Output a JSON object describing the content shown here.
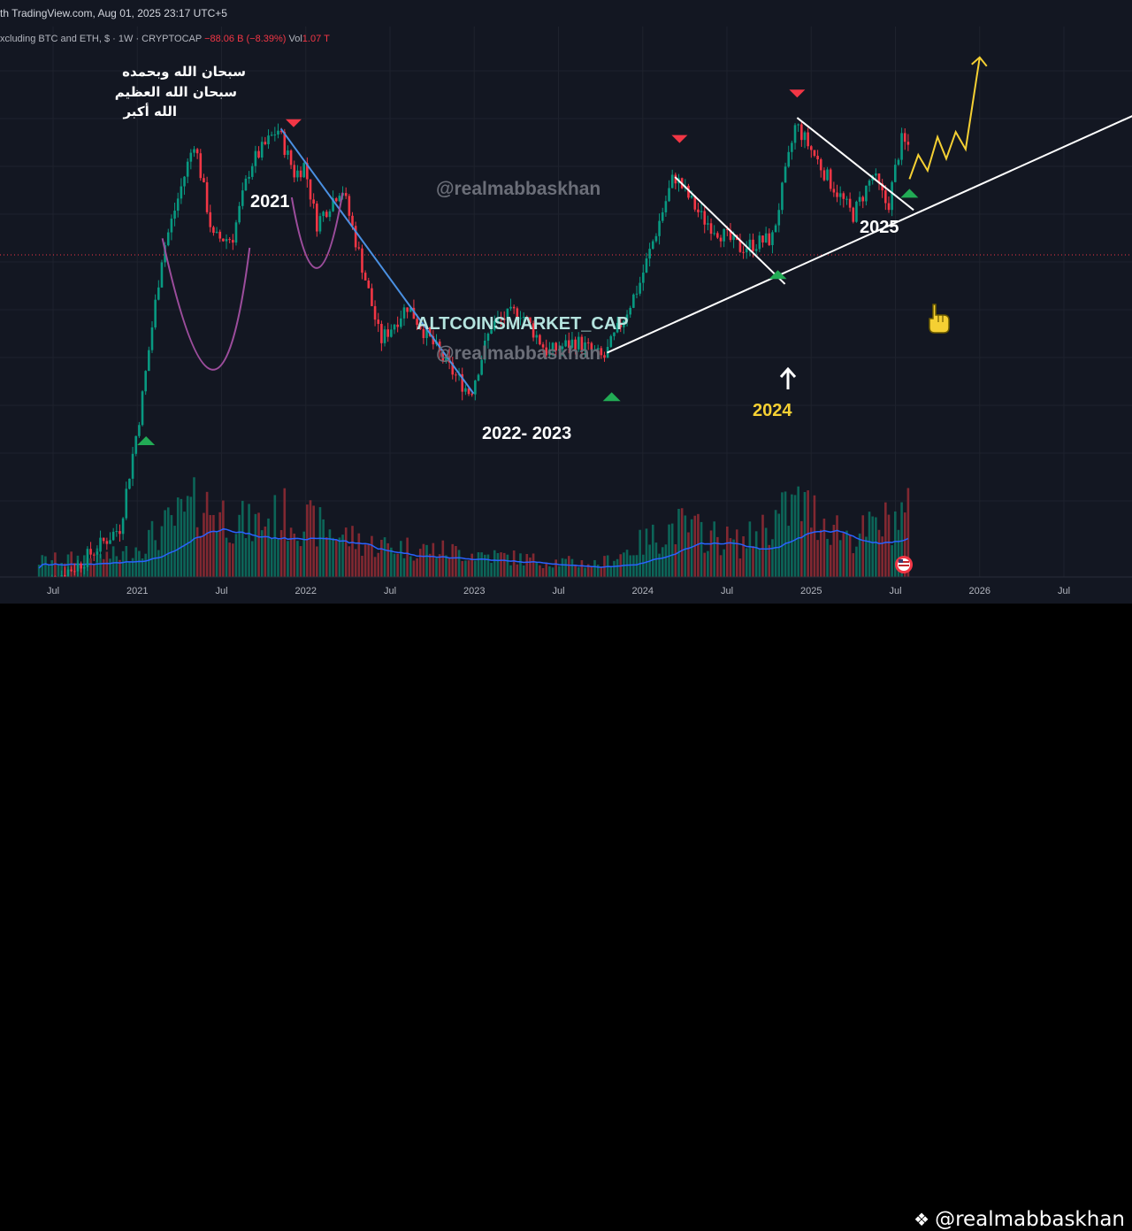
{
  "header": {
    "title_text": "th TradingView.com, Aug 01, 2025 23:17 UTC+5"
  },
  "legend": {
    "symbol_text": "xcluding BTC and ETH, $ · 1W · CRYPTOCAP",
    "change_text": "−88.06 B (−8.39%)",
    "vol_label": "Vol",
    "vol_value": "1.07 T"
  },
  "annotations": {
    "arabic_lines": [
      "سبحان الله وبحمده",
      "سبحان الله العظيم",
      "الله أكبر"
    ],
    "label_2021": "2021",
    "label_2022_2023": "2022- 2023",
    "label_2024": "2024",
    "label_2025": "2025",
    "altcoin_title": "ALTCOINSMARKET_CAP",
    "watermark_handle": "@realmabbaskhan"
  },
  "footer": {
    "watermark_text": "@realmabbaskhan"
  },
  "colors": {
    "background": "#131722",
    "up_candle": "#089981",
    "down_candle": "#f23645",
    "volume_ma": "#2962ff",
    "downtrend_line": "#4a90e2",
    "trend_line": "#ffffff",
    "cup_curve": "#9c4d9c",
    "projection": "#f5d033",
    "up_marker": "#22ab55",
    "down_marker": "#f23645"
  },
  "chart_data": {
    "type": "candlestick",
    "symbol": "CRYPTOCAP (excluding BTC and ETH)",
    "interval": "1W",
    "x_labels": [
      "Jul",
      "2021",
      "Jul",
      "2022",
      "Jul",
      "2023",
      "Jul",
      "2024",
      "Jul",
      "2025",
      "Jul",
      "2026",
      "Jul"
    ],
    "price_path": [
      [
        "2020-06-01",
        0.07
      ],
      [
        "2020-09-01",
        0.08
      ],
      [
        "2020-12-01",
        0.1
      ],
      [
        "2021-01-15",
        0.2
      ],
      [
        "2021-03-01",
        0.5
      ],
      [
        "2021-05-10",
        0.98
      ],
      [
        "2021-06-20",
        0.55
      ],
      [
        "2021-08-01",
        0.55
      ],
      [
        "2021-09-10",
        0.85
      ],
      [
        "2021-11-08",
        1.05
      ],
      [
        "2021-12-15",
        0.8
      ],
      [
        "2022-01-05",
        0.85
      ],
      [
        "2022-02-01",
        0.6
      ],
      [
        "2022-03-25",
        0.75
      ],
      [
        "2022-05-12",
        0.45
      ],
      [
        "2022-06-18",
        0.3
      ],
      [
        "2022-08-15",
        0.37
      ],
      [
        "2022-11-10",
        0.26
      ],
      [
        "2022-12-30",
        0.22
      ],
      [
        "2023-02-15",
        0.33
      ],
      [
        "2023-04-15",
        0.36
      ],
      [
        "2023-06-15",
        0.28
      ],
      [
        "2023-08-15",
        0.3
      ],
      [
        "2023-10-15",
        0.27
      ],
      [
        "2024-01-01",
        0.42
      ],
      [
        "2024-03-15",
        0.8
      ],
      [
        "2024-05-15",
        0.62
      ],
      [
        "2024-08-05",
        0.52
      ],
      [
        "2024-10-15",
        0.55
      ],
      [
        "2024-12-05",
        1.08
      ],
      [
        "2025-02-15",
        0.78
      ],
      [
        "2025-04-07",
        0.63
      ],
      [
        "2025-05-20",
        0.8
      ],
      [
        "2025-06-22",
        0.66
      ],
      [
        "2025-07-20",
        0.98
      ],
      [
        "2025-08-01",
        0.95
      ]
    ],
    "projection_path": [
      [
        "2025-08-01",
        0.78
      ],
      [
        "2025-08-20",
        0.9
      ],
      [
        "2025-09-10",
        0.82
      ],
      [
        "2025-10-01",
        1.0
      ],
      [
        "2025-10-20",
        0.88
      ],
      [
        "2025-11-10",
        1.03
      ],
      [
        "2025-12-01",
        0.93
      ],
      [
        "2026-01-01",
        1.6
      ]
    ],
    "volume_profile": [
      [
        "2020-06-01",
        0.22
      ],
      [
        "2020-12-01",
        0.3
      ],
      [
        "2021-02-15",
        0.6
      ],
      [
        "2021-05-15",
        1.0
      ],
      [
        "2021-09-01",
        0.7
      ],
      [
        "2021-11-15",
        0.85
      ],
      [
        "2022-05-15",
        0.45
      ],
      [
        "2022-11-15",
        0.35
      ],
      [
        "2023-06-01",
        0.22
      ],
      [
        "2023-10-01",
        0.18
      ],
      [
        "2024-03-15",
        0.7
      ],
      [
        "2024-08-01",
        0.45
      ],
      [
        "2024-12-01",
        1.0
      ],
      [
        "2025-04-01",
        0.55
      ],
      [
        "2025-07-20",
        0.85
      ]
    ],
    "trendlines": [
      {
        "kind": "downtrend",
        "from": [
          "2021-11-08",
          1.05
        ],
        "to": [
          "2022-12-30",
          0.22
        ]
      },
      {
        "kind": "support",
        "from": [
          "2023-10-15",
          0.28
        ],
        "to": [
          "2026-12-31",
          1.18
        ]
      },
      {
        "kind": "resistance",
        "from": [
          "2024-03-10",
          0.79
        ],
        "to": [
          "2024-11-05",
          0.42
        ]
      },
      {
        "kind": "resistance",
        "from": [
          "2024-12-01",
          1.12
        ],
        "to": [
          "2025-08-10",
          0.65
        ]
      }
    ],
    "markers": [
      {
        "shape": "up",
        "date": "2021-01-20"
      },
      {
        "shape": "down",
        "date": "2021-12-05"
      },
      {
        "shape": "up",
        "date": "2023-10-25"
      },
      {
        "shape": "down",
        "date": "2024-03-20"
      },
      {
        "shape": "up",
        "date": "2024-10-20"
      },
      {
        "shape": "down",
        "date": "2024-12-01"
      },
      {
        "shape": "up",
        "date": "2025-08-01"
      }
    ],
    "grid": true,
    "reference_level": 0.95
  }
}
